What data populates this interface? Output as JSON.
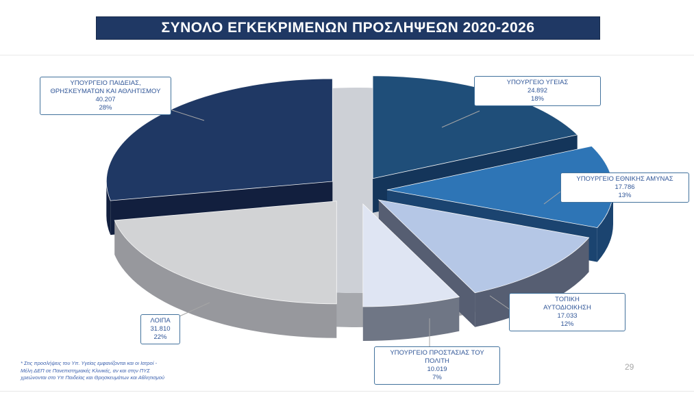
{
  "slide": {
    "title": "ΣΥΝΟΛΟ ΕΓΚΕΚΡΙΜΕΝΩΝ ΠΡΟΣΛΗΨΕΩΝ 2020-2026",
    "page_number": "29",
    "footnote_lines": [
      "* Στις προσλήψεις του Υπ. Υγείας εμφανίζονται και οι Ιατροί -",
      "Μέλη ΔΕΠ  σε Πανεπιστημιακές Κλινικές, αν και στην ΠΥΣ",
      "χρεώνονται στο Υπ Παιδείας και Θρησκευμάτων και Αθλητισμού"
    ],
    "colors": {
      "banner_bg": "#1F3864",
      "banner_text": "#FFFFFF",
      "callout_border": "#41719C",
      "callout_text": "#2F5597",
      "connector": "#A6A6A6",
      "footnote_text": "#3C61AE",
      "page_number_text": "#A6A6A6"
    }
  },
  "chart_data": {
    "type": "pie",
    "style": "3d-exploded",
    "title": "ΣΥΝΟΛΟ ΕΓΚΕΚΡΙΜΕΝΩΝ ΠΡΟΣΛΗΨΕΩΝ 2020-2026",
    "start_angle_deg": -90,
    "direction": "clockwise",
    "legend_position": "callout-labels",
    "slices": [
      {
        "label": "ΥΠΟΥΡΓΕΙΟ ΥΓΕΙΑΣ",
        "value": 24892,
        "value_display": "24.892",
        "pct": 18,
        "pct_display": "18%",
        "color": "#1F4E79",
        "side_color": "#14355A"
      },
      {
        "label": "ΥΠΟΥΡΓΕΙΟ ΕΘΝΙΚΗΣ ΑΜΥΝΑΣ",
        "value": 17786,
        "value_display": "17.786",
        "pct": 13,
        "pct_display": "13%",
        "color": "#2E75B6",
        "side_color": "#1B4470"
      },
      {
        "label": "ΤΟΠΙΚΗ\nΑΥΤΟΔΙΟΙΚΗΣΗ",
        "value": 17033,
        "value_display": "17.033",
        "pct": 12,
        "pct_display": "12%",
        "color": "#B5C7E6",
        "side_color": "#565E72"
      },
      {
        "label": "ΥΠΟΥΡΓΕΙΟ ΠΡΟΣΤΑΣΙΑΣ ΤΟΥ\nΠΟΛΙΤΗ",
        "value": 10019,
        "value_display": "10.019",
        "pct": 7,
        "pct_display": "7%",
        "color": "#DFE5F3",
        "side_color": "#6F7685"
      },
      {
        "label": "ΛΟΙΠΑ",
        "value": 31810,
        "value_display": "31.810",
        "pct": 22,
        "pct_display": "22%",
        "color": "#D2D3D5",
        "side_color": "#97989D"
      },
      {
        "label": "ΥΠΟΥΡΓΕΙΟ ΠΑΙΔΕΙΑΣ,\nΘΡΗΣΚΕΥΜΑΤΩΝ ΚΑΙ ΑΘΛΗΤΙΣΜΟΥ",
        "value": 40207,
        "value_display": "40.207",
        "pct": 28,
        "pct_display": "28%",
        "color": "#1F3864",
        "side_color": "#121F3E"
      }
    ],
    "base": {
      "top_color": "#CDD0D6",
      "side_color": "#A6A8AD"
    }
  }
}
